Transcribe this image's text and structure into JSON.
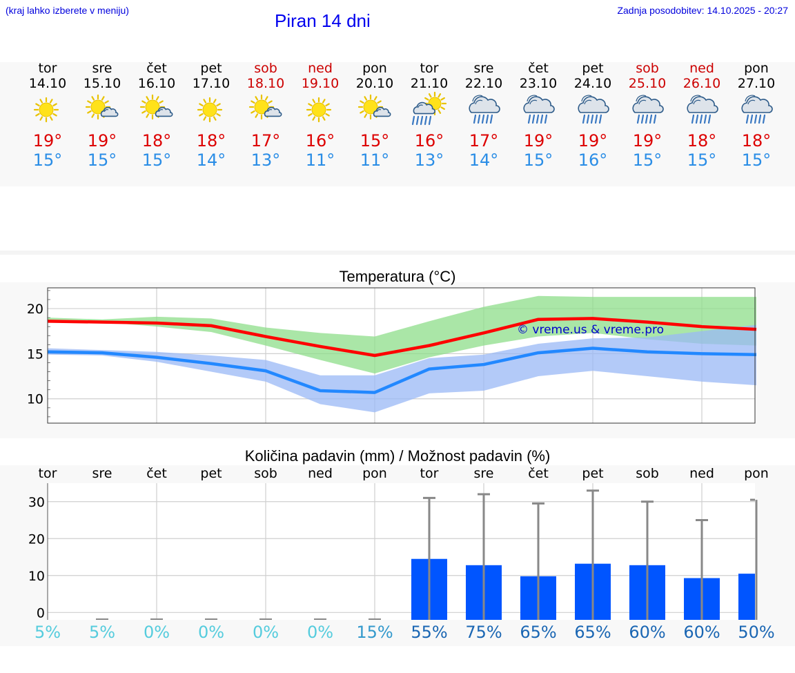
{
  "header": {
    "hint": "(kraj lahko izberete v meniju)",
    "title": "Piran 14 dni",
    "updated": "Zadnja posodobitev: 14.10.2025 - 20:27"
  },
  "days": [
    {
      "name": "tor",
      "date": "14.10",
      "icon": "sun-icon",
      "max": "19°",
      "min": "15°",
      "weekend": false
    },
    {
      "name": "sre",
      "date": "15.10",
      "icon": "sun-cloud-icon",
      "max": "19°",
      "min": "15°",
      "weekend": false
    },
    {
      "name": "čet",
      "date": "16.10",
      "icon": "sun-cloud-icon",
      "max": "18°",
      "min": "15°",
      "weekend": false
    },
    {
      "name": "pet",
      "date": "17.10",
      "icon": "sun-icon",
      "max": "18°",
      "min": "14°",
      "weekend": false
    },
    {
      "name": "sob",
      "date": "18.10",
      "icon": "sun-cloud-icon",
      "max": "17°",
      "min": "13°",
      "weekend": true
    },
    {
      "name": "ned",
      "date": "19.10",
      "icon": "sun-icon",
      "max": "16°",
      "min": "11°",
      "weekend": true
    },
    {
      "name": "pon",
      "date": "20.10",
      "icon": "sun-cloud-icon",
      "max": "15°",
      "min": "11°",
      "weekend": false
    },
    {
      "name": "tor",
      "date": "21.10",
      "icon": "sun-rain-icon",
      "max": "16°",
      "min": "13°",
      "weekend": false
    },
    {
      "name": "sre",
      "date": "22.10",
      "icon": "rain-cloud-icon",
      "max": "17°",
      "min": "14°",
      "weekend": false
    },
    {
      "name": "čet",
      "date": "23.10",
      "icon": "rain-cloud-icon",
      "max": "19°",
      "min": "15°",
      "weekend": false
    },
    {
      "name": "pet",
      "date": "24.10",
      "icon": "rain-cloud-icon",
      "max": "19°",
      "min": "16°",
      "weekend": false
    },
    {
      "name": "sob",
      "date": "25.10",
      "icon": "rain-cloud-icon",
      "max": "19°",
      "min": "15°",
      "weekend": true
    },
    {
      "name": "ned",
      "date": "26.10",
      "icon": "rain-cloud-icon",
      "max": "18°",
      "min": "15°",
      "weekend": true
    },
    {
      "name": "pon",
      "date": "27.10",
      "icon": "rain-cloud-icon",
      "max": "18°",
      "min": "15°",
      "weekend": false
    }
  ],
  "chart_data": [
    {
      "type": "line",
      "title": "Temperatura (°C)",
      "ylim": [
        7.3,
        22.3
      ],
      "yticks": [
        10,
        15,
        20
      ],
      "x": [
        0,
        1,
        2,
        3,
        4,
        5,
        6,
        7,
        8,
        9,
        10,
        11,
        12,
        13
      ],
      "series": [
        {
          "name": "max",
          "color": "#ff0000",
          "values": [
            18.6,
            18.5,
            18.4,
            18.1,
            16.9,
            15.8,
            14.8,
            15.9,
            17.3,
            18.8,
            18.9,
            18.5,
            18.0,
            17.7
          ]
        },
        {
          "name": "min",
          "color": "#2288ff",
          "values": [
            15.2,
            15.1,
            14.6,
            13.9,
            13.1,
            10.9,
            10.7,
            13.3,
            13.8,
            15.1,
            15.6,
            15.2,
            15.0,
            14.9
          ]
        }
      ],
      "bands": [
        {
          "name": "max-range",
          "color": "#8ede8a",
          "lower": [
            18.7,
            18.5,
            18.0,
            17.4,
            15.9,
            14.3,
            12.8,
            14.6,
            15.9,
            16.9,
            17.3,
            16.6,
            16.1,
            15.9
          ],
          "upper": [
            19.0,
            18.8,
            19.1,
            18.9,
            17.9,
            17.3,
            16.9,
            18.6,
            20.2,
            21.4,
            21.3,
            21.3,
            21.3,
            21.3
          ]
        },
        {
          "name": "min-range",
          "color": "#9ab8f5",
          "lower": [
            14.9,
            14.8,
            14.1,
            13.0,
            11.9,
            9.4,
            8.5,
            10.6,
            10.9,
            12.5,
            13.1,
            12.5,
            11.9,
            11.5
          ]
        },
        {
          "name": "min-range-upper",
          "color": "#9ab8f5",
          "values": [
            15.6,
            15.4,
            15.2,
            14.8,
            14.3,
            12.6,
            12.6,
            14.5,
            14.9,
            16.1,
            16.7,
            16.8,
            17.5,
            18.2
          ]
        }
      ],
      "watermark": "© vreme.us & vreme.pro",
      "grid": true
    },
    {
      "type": "bar",
      "title": "Količina padavin (mm) / Možnost padavin (%)",
      "categories": [
        "tor",
        "sre",
        "čet",
        "pet",
        "sob",
        "ned",
        "pon",
        "tor",
        "sre",
        "čet",
        "pet",
        "sob",
        "ned",
        "pon"
      ],
      "ylim": [
        -2,
        35
      ],
      "yticks": [
        0,
        10,
        20,
        30
      ],
      "values": [
        0,
        0,
        0,
        0,
        0,
        0,
        0,
        14.5,
        12.8,
        9.8,
        13.2,
        12.8,
        9.3,
        10.5
      ],
      "error_max": [
        0,
        0,
        0,
        0,
        0,
        0,
        0,
        31,
        32,
        29.5,
        33,
        30,
        25,
        30.5
      ],
      "bar_color": "#0055ff",
      "chance": [
        "5%",
        "5%",
        "0%",
        "0%",
        "0%",
        "0%",
        "15%",
        "55%",
        "75%",
        "65%",
        "65%",
        "60%",
        "60%",
        "50%"
      ],
      "chance_colors": [
        "#55ccdd",
        "#55ccdd",
        "#55ccdd",
        "#55ccdd",
        "#55ccdd",
        "#55ccdd",
        "#3399cc",
        "#1a66b3",
        "#1a66b3",
        "#1a66b3",
        "#1a66b3",
        "#1a66b3",
        "#1a66b3",
        "#1a66b3"
      ],
      "grid": true
    }
  ]
}
